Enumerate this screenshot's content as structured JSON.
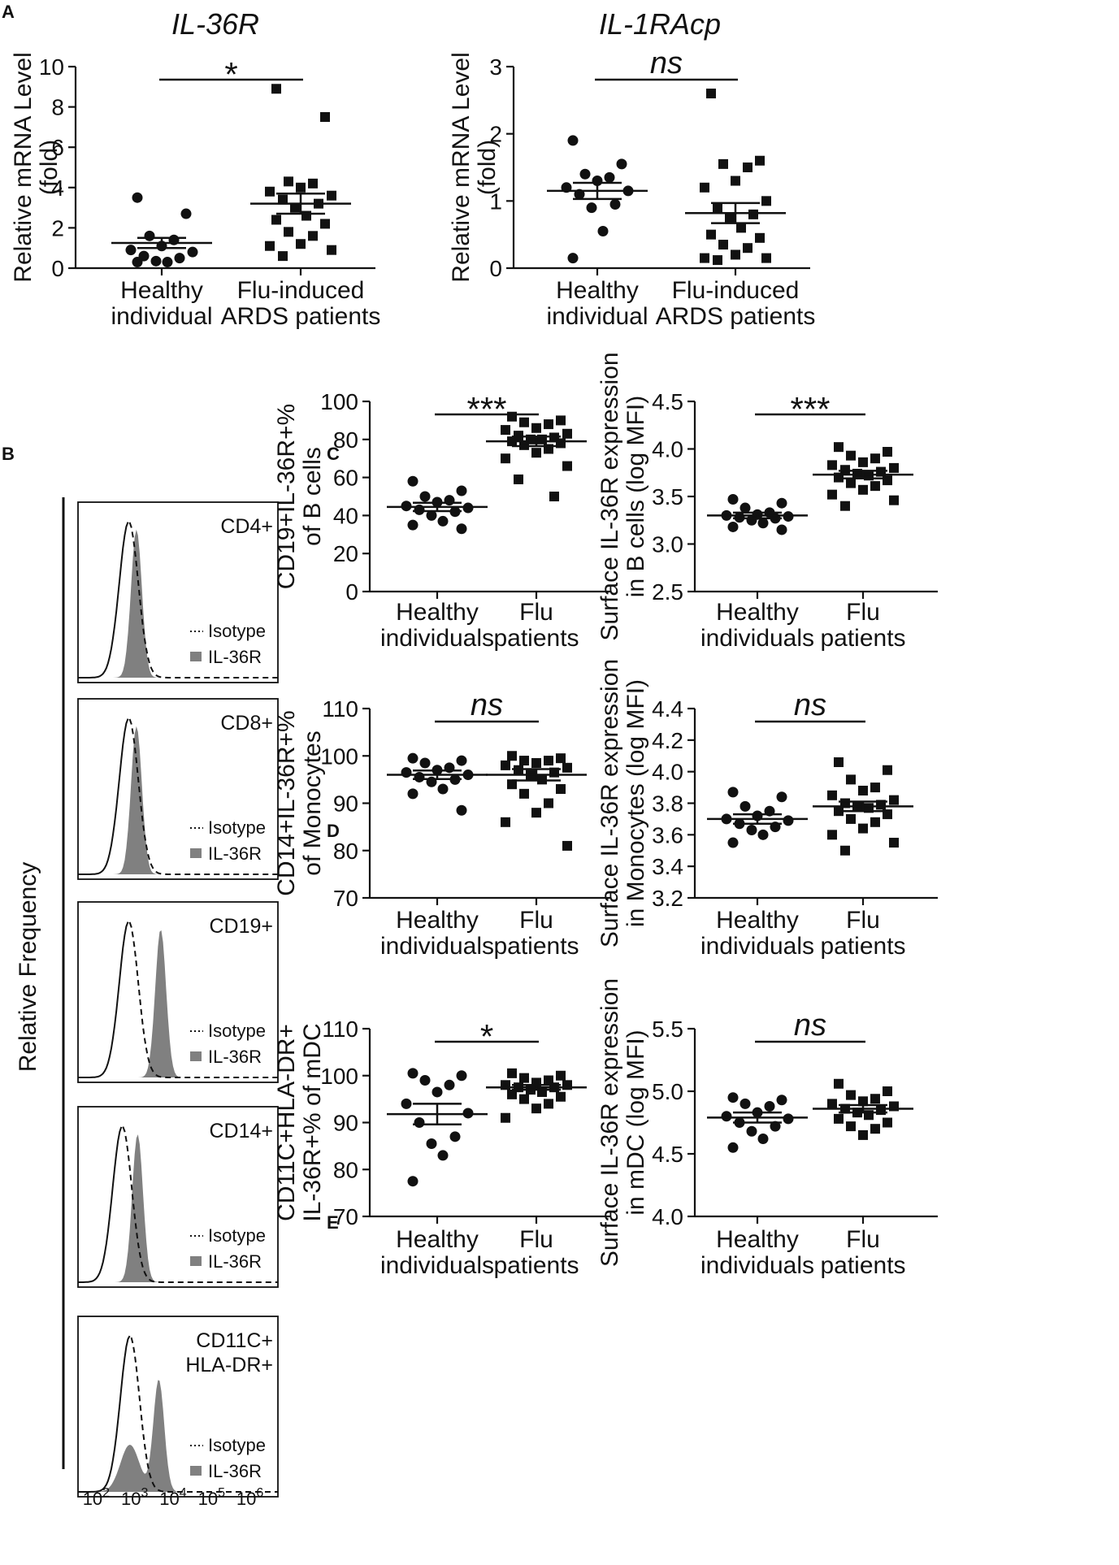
{
  "panel_labels": {
    "A": "A",
    "B": "B",
    "C": "C",
    "D": "D",
    "E": "E"
  },
  "colors": {
    "ink": "#111111",
    "fill": "#808080"
  },
  "chart_data": [
    {
      "id": "a1",
      "panel": "A",
      "type": "scatter",
      "title": "IL-36R",
      "ylabel": [
        "Relative mRNA Level",
        "(fold)"
      ],
      "categories": [
        [
          "Healthy",
          "individual"
        ],
        [
          "Flu-induced",
          "ARDS patients"
        ]
      ],
      "ylim": [
        0,
        10
      ],
      "yticks": [
        0,
        2,
        4,
        6,
        8,
        10
      ],
      "ytick_labels": [
        "0",
        "2",
        "4",
        "6",
        "8",
        "10"
      ],
      "significance": "*",
      "groups": [
        {
          "name": "Healthy individual",
          "marker": "circle",
          "mean": 1.25,
          "sem": 0.25,
          "values": [
            3.5,
            2.7,
            1.6,
            1.4,
            1.1,
            0.9,
            0.8,
            0.6,
            0.5,
            0.35,
            0.3,
            0.3
          ]
        },
        {
          "name": "Flu-induced ARDS patients",
          "marker": "square",
          "mean": 3.2,
          "sem": 0.5,
          "values": [
            8.9,
            7.5,
            4.3,
            4.2,
            4.0,
            3.8,
            3.6,
            3.4,
            3.2,
            3.0,
            2.6,
            2.4,
            2.2,
            1.8,
            1.6,
            1.2,
            1.1,
            0.9,
            0.6
          ]
        }
      ]
    },
    {
      "id": "a2",
      "panel": "A",
      "type": "scatter",
      "title": "IL-1RAcp",
      "ylabel": [
        "Relative mRNA Level",
        "(fold)"
      ],
      "categories": [
        [
          "Healthy",
          "individual"
        ],
        [
          "Flu-induced",
          "ARDS patients"
        ]
      ],
      "ylim": [
        0,
        3
      ],
      "yticks": [
        0,
        1,
        2,
        3
      ],
      "ytick_labels": [
        "0",
        "1",
        "2",
        "3"
      ],
      "significance": "ns",
      "groups": [
        {
          "name": "Healthy individual",
          "marker": "circle",
          "mean": 1.15,
          "sem": 0.12,
          "values": [
            1.9,
            1.55,
            1.4,
            1.35,
            1.3,
            1.2,
            1.15,
            1.1,
            0.95,
            0.9,
            0.55,
            0.15
          ]
        },
        {
          "name": "Flu-induced ARDS patients",
          "marker": "square",
          "mean": 0.82,
          "sem": 0.15,
          "values": [
            2.6,
            1.6,
            1.55,
            1.5,
            1.3,
            1.2,
            1.0,
            0.9,
            0.8,
            0.75,
            0.6,
            0.5,
            0.45,
            0.35,
            0.3,
            0.2,
            0.15,
            0.15,
            0.12
          ]
        }
      ]
    },
    {
      "id": "c1",
      "panel": "C",
      "type": "scatter",
      "ylabel": [
        "CD19+IL-36R+%",
        "of B cells"
      ],
      "categories": [
        [
          "Healthy",
          "individuals"
        ],
        [
          "Flu",
          "patients"
        ]
      ],
      "ylim": [
        0,
        100
      ],
      "yticks": [
        0,
        20,
        40,
        60,
        80,
        100
      ],
      "ytick_labels": [
        "0",
        "20",
        "40",
        "60",
        "80",
        "100"
      ],
      "significance": "***",
      "groups": [
        {
          "name": "Healthy individuals",
          "marker": "circle",
          "mean": 44.5,
          "sem": 2.2,
          "values": [
            58,
            53,
            50,
            48,
            47,
            45,
            44,
            43,
            42,
            40,
            37,
            35,
            33
          ]
        },
        {
          "name": "Flu patients",
          "marker": "square",
          "mean": 79,
          "sem": 2.5,
          "values": [
            92,
            90,
            89,
            88,
            86,
            85,
            83,
            82,
            81,
            80,
            80,
            79,
            78,
            77,
            75,
            73,
            70,
            66,
            59,
            50
          ]
        }
      ]
    },
    {
      "id": "c2",
      "panel": "C",
      "type": "scatter",
      "ylabel": [
        "Surface IL-36R expression",
        "in B cells (log MFI)"
      ],
      "categories": [
        [
          "Healthy",
          "individuals"
        ],
        [
          "Flu",
          "patients"
        ]
      ],
      "ylim": [
        2.5,
        4.5
      ],
      "yticks": [
        2.5,
        3.0,
        3.5,
        4.0,
        4.5
      ],
      "ytick_labels": [
        "2.5",
        "3.0",
        "3.5",
        "4.0",
        "4.5"
      ],
      "significance": "***",
      "groups": [
        {
          "name": "Healthy individuals",
          "marker": "circle",
          "mean": 3.3,
          "sem": 0.03,
          "values": [
            3.47,
            3.43,
            3.38,
            3.33,
            3.31,
            3.3,
            3.29,
            3.28,
            3.27,
            3.25,
            3.22,
            3.18,
            3.15
          ]
        },
        {
          "name": "Flu patients",
          "marker": "square",
          "mean": 3.73,
          "sem": 0.04,
          "values": [
            4.02,
            3.97,
            3.93,
            3.9,
            3.86,
            3.83,
            3.8,
            3.78,
            3.76,
            3.74,
            3.72,
            3.7,
            3.67,
            3.64,
            3.61,
            3.57,
            3.52,
            3.46,
            3.4
          ]
        }
      ]
    },
    {
      "id": "d1",
      "panel": "D",
      "type": "scatter",
      "ylabel": [
        "CD14+IL-36R+%",
        "of Monocytes"
      ],
      "categories": [
        [
          "Healthy",
          "individuals"
        ],
        [
          "Flu",
          "patients"
        ]
      ],
      "ylim": [
        70,
        110
      ],
      "yticks": [
        70,
        80,
        90,
        100,
        110
      ],
      "ytick_labels": [
        "70",
        "80",
        "90",
        "100",
        "110"
      ],
      "significance": "ns",
      "groups": [
        {
          "name": "Healthy individuals",
          "marker": "circle",
          "mean": 96,
          "sem": 0.9,
          "values": [
            99.5,
            99,
            98.5,
            97.5,
            97,
            96.5,
            96,
            95.5,
            95,
            94.5,
            93,
            92,
            88.5
          ]
        },
        {
          "name": "Flu patients",
          "marker": "square",
          "mean": 96,
          "sem": 1.2,
          "values": [
            100,
            99.5,
            99,
            99,
            98.5,
            98,
            97.5,
            97,
            96.5,
            96,
            95,
            94,
            93,
            92,
            90,
            88,
            86,
            81
          ]
        }
      ]
    },
    {
      "id": "d2",
      "panel": "D",
      "type": "scatter",
      "ylabel": [
        "Surface IL-36R expression",
        "in Monocytes (log MFI)"
      ],
      "categories": [
        [
          "Healthy",
          "individuals"
        ],
        [
          "Flu",
          "patients"
        ]
      ],
      "ylim": [
        3.2,
        4.4
      ],
      "yticks": [
        3.2,
        3.4,
        3.6,
        3.8,
        4.0,
        4.2,
        4.4
      ],
      "ytick_labels": [
        "3.2",
        "3.4",
        "3.6",
        "3.8",
        "4.0",
        "4.2",
        "4.4"
      ],
      "significance": "ns",
      "groups": [
        {
          "name": "Healthy individuals",
          "marker": "circle",
          "mean": 3.7,
          "sem": 0.03,
          "values": [
            3.87,
            3.84,
            3.78,
            3.75,
            3.72,
            3.7,
            3.69,
            3.67,
            3.65,
            3.63,
            3.6,
            3.55
          ]
        },
        {
          "name": "Flu patients",
          "marker": "square",
          "mean": 3.78,
          "sem": 0.03,
          "values": [
            4.06,
            4.01,
            3.95,
            3.9,
            3.88,
            3.85,
            3.82,
            3.8,
            3.79,
            3.78,
            3.77,
            3.75,
            3.73,
            3.7,
            3.68,
            3.64,
            3.6,
            3.55,
            3.5
          ]
        }
      ]
    },
    {
      "id": "e1",
      "panel": "E",
      "type": "scatter",
      "ylabel": [
        "CD11C+HLA-DR+",
        "IL-36R+% of mDC"
      ],
      "categories": [
        [
          "Healthy",
          "individuals"
        ],
        [
          "Flu",
          "patients"
        ]
      ],
      "ylim": [
        70,
        110
      ],
      "yticks": [
        70,
        80,
        90,
        100,
        110
      ],
      "ytick_labels": [
        "70",
        "80",
        "90",
        "100",
        "110"
      ],
      "significance": "*",
      "groups": [
        {
          "name": "Healthy individuals",
          "marker": "circle",
          "mean": 91.8,
          "sem": 2.2,
          "values": [
            100.5,
            100,
            99,
            98,
            96.5,
            94,
            92,
            90,
            87,
            85.5,
            83,
            77.5
          ]
        },
        {
          "name": "Flu patients",
          "marker": "square",
          "mean": 97.5,
          "sem": 0.5,
          "values": [
            100.5,
            100,
            99.5,
            99,
            98.5,
            98,
            98,
            97.5,
            97.5,
            97,
            96.5,
            96,
            95.5,
            95,
            94,
            93,
            91
          ]
        }
      ]
    },
    {
      "id": "e2",
      "panel": "E",
      "type": "scatter",
      "ylabel": [
        "Surface IL-36R expression",
        "in mDC (log MFI)"
      ],
      "categories": [
        [
          "Healthy",
          "individuals"
        ],
        [
          "Flu",
          "patients"
        ]
      ],
      "ylim": [
        4.0,
        5.5
      ],
      "yticks": [
        4.0,
        4.5,
        5.0,
        5.5
      ],
      "ytick_labels": [
        "4.0",
        "4.5",
        "5.0",
        "5.5"
      ],
      "significance": "ns",
      "groups": [
        {
          "name": "Healthy individuals",
          "marker": "circle",
          "mean": 4.79,
          "sem": 0.04,
          "values": [
            4.95,
            4.93,
            4.9,
            4.88,
            4.83,
            4.8,
            4.78,
            4.75,
            4.72,
            4.68,
            4.62,
            4.55
          ]
        },
        {
          "name": "Flu patients",
          "marker": "square",
          "mean": 4.86,
          "sem": 0.03,
          "values": [
            5.06,
            5.0,
            4.97,
            4.94,
            4.92,
            4.9,
            4.88,
            4.86,
            4.85,
            4.83,
            4.81,
            4.78,
            4.75,
            4.72,
            4.7,
            4.65
          ]
        }
      ]
    }
  ],
  "flow": {
    "panel": "B",
    "ylabel": "Relative Frequency",
    "xtick_labels": [
      "10",
      "10",
      "10",
      "10",
      "10"
    ],
    "xtick_exponents": [
      "2",
      "3",
      "4",
      "5",
      "6"
    ],
    "legend": {
      "isotype": "Isotype",
      "stain": "IL-36R"
    },
    "histograms": [
      {
        "label": [
          "CD4+"
        ],
        "isotype_peak_log": 2.72,
        "stain_peak_log": 2.92,
        "stain_second_peak_log": null
      },
      {
        "label": [
          "CD8+"
        ],
        "isotype_peak_log": 2.72,
        "stain_peak_log": 2.92,
        "stain_second_peak_log": null
      },
      {
        "label": [
          "CD19+"
        ],
        "isotype_peak_log": 2.72,
        "stain_peak_log": 3.55,
        "stain_second_peak_log": null
      },
      {
        "label": [
          "CD14+"
        ],
        "isotype_peak_log": 2.55,
        "stain_peak_log": 2.95,
        "stain_second_peak_log": null
      },
      {
        "label": [
          "CD11C+",
          "HLA-DR+"
        ],
        "isotype_peak_log": 2.75,
        "stain_peak_log": 3.5,
        "stain_second_peak_log": 2.75
      }
    ]
  }
}
